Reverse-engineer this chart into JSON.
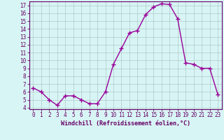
{
  "x": [
    0,
    1,
    2,
    3,
    4,
    5,
    6,
    7,
    8,
    9,
    10,
    11,
    12,
    13,
    14,
    15,
    16,
    17,
    18,
    19,
    20,
    21,
    22,
    23
  ],
  "y": [
    6.5,
    6.0,
    5.0,
    4.3,
    5.5,
    5.5,
    5.0,
    4.5,
    4.5,
    6.0,
    9.5,
    11.5,
    13.5,
    13.8,
    15.8,
    16.8,
    17.2,
    17.1,
    15.3,
    9.7,
    9.5,
    9.0,
    9.0,
    5.7
  ],
  "line_color": "#990099",
  "marker": "+",
  "marker_size": 4,
  "bg_color": "#d8f5f5",
  "grid_color": "#b0c8c8",
  "xlabel": "Windchill (Refroidissement éolien,°C)",
  "xlabel_color": "#660066",
  "tick_color": "#660066",
  "ylim": [
    3.8,
    17.5
  ],
  "xlim": [
    -0.5,
    23.5
  ],
  "yticks": [
    4,
    5,
    6,
    7,
    8,
    9,
    10,
    11,
    12,
    13,
    14,
    15,
    16,
    17
  ],
  "xticks": [
    0,
    1,
    2,
    3,
    4,
    5,
    6,
    7,
    8,
    9,
    10,
    11,
    12,
    13,
    14,
    15,
    16,
    17,
    18,
    19,
    20,
    21,
    22,
    23
  ]
}
